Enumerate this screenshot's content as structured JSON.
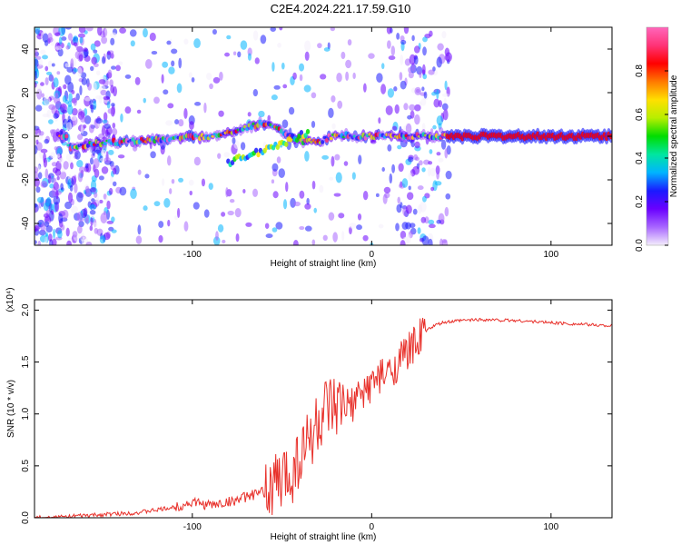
{
  "page": {
    "title": "C2E4.2024.221.17.59.G10"
  },
  "colors": {
    "snr_line": "#e8302a",
    "colorbar_stops": [
      "#f4eefc",
      "#a866ff",
      "#6a00ff",
      "#1a1aff",
      "#00b4ff",
      "#00e6a0",
      "#00dd00",
      "#b7ee00",
      "#ffe000",
      "#ff7a00",
      "#ff0000",
      "#ff3377",
      "#ff66bb"
    ]
  },
  "chart_data": [
    {
      "type": "heatmap",
      "title": "C2E4.2024.221.17.59.G10",
      "xlabel": "Height of straight line (km)",
      "ylabel": "Frequency (Hz)",
      "xlim": [
        -188,
        134
      ],
      "ylim": [
        -50,
        50
      ],
      "x_ticks": [
        -100,
        0,
        100
      ],
      "y_ticks": [
        -40,
        -20,
        0,
        20,
        40
      ],
      "colorbar": {
        "label": "Normalized spectral amplitude",
        "range": [
          0,
          1
        ],
        "ticks": [
          "0.0",
          "0.2",
          "0.4",
          "0.6",
          "0.8"
        ]
      },
      "ridge": {
        "description_points_x": [
          -170,
          -150,
          -130,
          -110,
          -90,
          -75,
          -60,
          -50,
          -40,
          -30,
          -20,
          -10,
          0,
          10,
          20,
          30,
          40,
          60,
          80,
          100,
          120,
          134
        ],
        "description_points_y": [
          -5,
          -3,
          -2,
          -1,
          0,
          3,
          6,
          2,
          -2,
          -3,
          1,
          0,
          0,
          0,
          0,
          0,
          0,
          0,
          0,
          0,
          0,
          0
        ]
      }
    },
    {
      "type": "line",
      "xlabel": "Height of straight line (km)",
      "ylabel": "SNR (10 * v/v)",
      "y_multiplier": "(x10⁴)",
      "xlim": [
        -188,
        134
      ],
      "ylim": [
        0,
        2.1
      ],
      "x_ticks": [
        -100,
        0,
        100
      ],
      "y_ticks": [
        "0.0",
        "0.5",
        "1.0",
        "1.5",
        "2.0"
      ],
      "series": [
        {
          "x": [
            -188,
            -170,
            -150,
            -130,
            -110,
            -100,
            -90,
            -80,
            -70,
            -60,
            -50,
            -45,
            -40,
            -35,
            -30,
            -25,
            -20,
            -15,
            -10,
            -5,
            0,
            5,
            10,
            15,
            20,
            25,
            30,
            35,
            40,
            50,
            60,
            80,
            100,
            120,
            134
          ],
          "values": [
            0.0,
            0.01,
            0.03,
            0.05,
            0.1,
            0.15,
            0.12,
            0.15,
            0.2,
            0.25,
            0.35,
            0.45,
            0.6,
            0.75,
            0.9,
            1.0,
            1.0,
            1.05,
            1.1,
            1.2,
            1.3,
            1.35,
            1.4,
            1.5,
            1.6,
            1.7,
            1.8,
            1.85,
            1.88,
            1.9,
            1.91,
            1.9,
            1.88,
            1.86,
            1.85
          ]
        }
      ]
    }
  ]
}
